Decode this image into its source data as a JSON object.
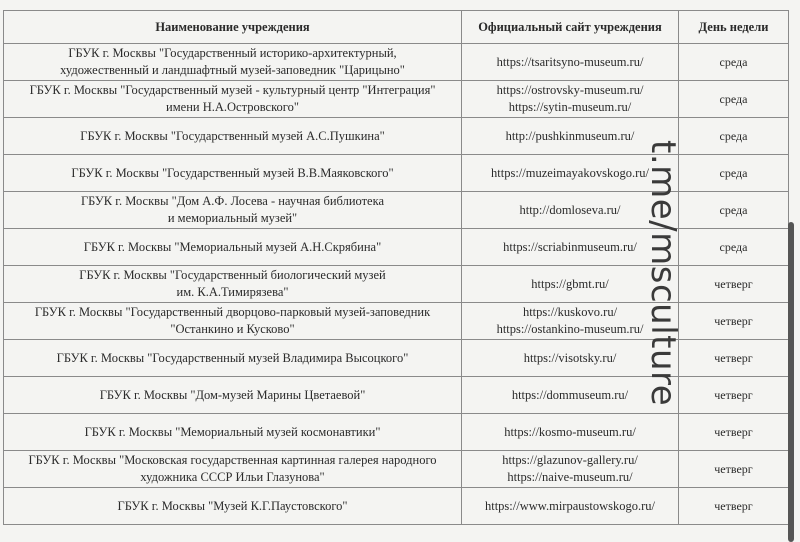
{
  "table": {
    "headers": [
      "Наименование учреждения",
      "Официальный сайт учреждения",
      "День недели"
    ],
    "rows": [
      {
        "name": [
          "ГБУК г. Москвы \"Государственный историко-архитектурный,",
          "художественный и ландшафтный музей-заповедник \"Царицыно\""
        ],
        "sites": [
          "https://tsaritsyno-museum.ru/"
        ],
        "day": "среда"
      },
      {
        "name": [
          "ГБУК г. Москвы \"Государственный музей - культурный центр \"Интеграция\"",
          "имени Н.А.Островского\""
        ],
        "sites": [
          "https://ostrovsky-museum.ru/",
          "https://sytin-museum.ru/"
        ],
        "day": "среда"
      },
      {
        "name": [
          "ГБУК г. Москвы \"Государственный музей А.С.Пушкина\""
        ],
        "sites": [
          "http://pushkinmuseum.ru/"
        ],
        "day": "среда"
      },
      {
        "name": [
          "ГБУК г. Москвы \"Государственный музей В.В.Маяковского\""
        ],
        "sites": [
          "https://muzeimayakovskogo.ru/"
        ],
        "day": "среда"
      },
      {
        "name": [
          "ГБУК г. Москвы \"Дом А.Ф. Лосева - научная библиотека",
          "и мемориальный музей\""
        ],
        "sites": [
          "http://domloseva.ru/"
        ],
        "day": "среда"
      },
      {
        "name": [
          "ГБУК г. Москвы \"Мемориальный музей А.Н.Скрябина\""
        ],
        "sites": [
          "https://scriabinmuseum.ru/"
        ],
        "day": "среда"
      },
      {
        "name": [
          "ГБУК г. Москвы \"Государственный биологический музей",
          "им. К.А.Тимирязева\""
        ],
        "sites": [
          "https://gbmt.ru/"
        ],
        "day": "четверг"
      },
      {
        "name": [
          "ГБУК г. Москвы \"Государственный дворцово-парковый музей-заповедник",
          "\"Останкино и Кусково\""
        ],
        "sites": [
          "https://kuskovo.ru/",
          "https://ostankino-museum.ru/"
        ],
        "day": "четверг"
      },
      {
        "name": [
          "ГБУК г. Москвы \"Государственный музей Владимира Высоцкого\""
        ],
        "sites": [
          "https://visotsky.ru/"
        ],
        "day": "четверг"
      },
      {
        "name": [
          "ГБУК г. Москвы \"Дом-музей Марины Цветаевой\""
        ],
        "sites": [
          "https://dommuseum.ru/"
        ],
        "day": "четверг"
      },
      {
        "name": [
          "ГБУК г. Москвы \"Мемориальный музей космонавтики\""
        ],
        "sites": [
          "https://kosmo-museum.ru/"
        ],
        "day": "четверг"
      },
      {
        "name": [
          "ГБУК г. Москвы \"Московская государственная картинная галерея народного",
          "художника СССР Ильи Глазунова\""
        ],
        "sites": [
          "https://glazunov-gallery.ru/",
          "https://naive-museum.ru/"
        ],
        "day": "четверг"
      },
      {
        "name": [
          "ГБУК г. Москвы \"Музей К.Г.Паустовского\""
        ],
        "sites": [
          "https://www.mirpaustowskogo.ru/"
        ],
        "day": "четверг"
      }
    ]
  },
  "watermark": "t.me/msculture"
}
